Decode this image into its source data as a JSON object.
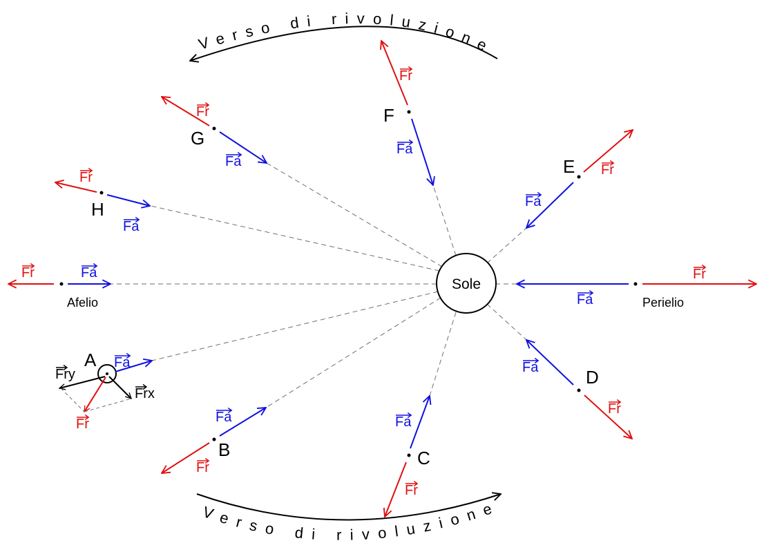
{
  "sun": {
    "label": "Sole"
  },
  "labels": {
    "afelio": "Afelio",
    "perielio": "Perielio",
    "revolution_top": "Verso di rivoluzione",
    "revolution_bottom": "Verso di rivoluzione"
  },
  "force_labels": {
    "attractive": "Fa",
    "repulsive": "Fr",
    "repulsive_x": "Frx",
    "repulsive_y": "Fry"
  },
  "points": {
    "A": "A",
    "B": "B",
    "C": "C",
    "D": "D",
    "E": "E",
    "F": "F",
    "G": "G",
    "H": "H"
  },
  "colors": {
    "attractive": "#1010e0",
    "repulsive": "#e01010",
    "line": "#000000",
    "dashed": "#6e6e6e"
  }
}
